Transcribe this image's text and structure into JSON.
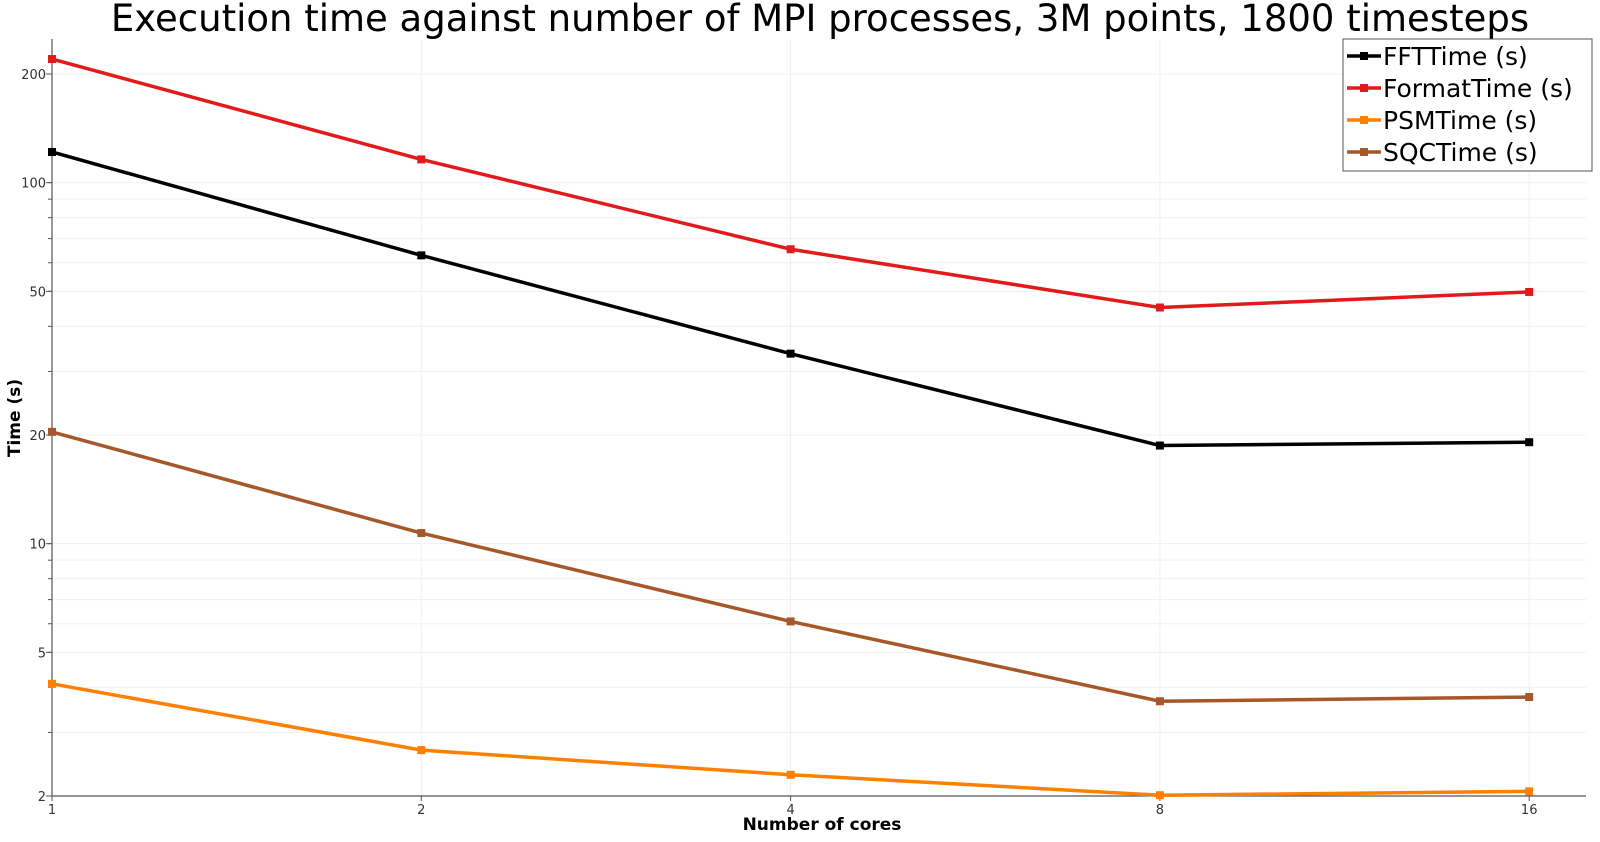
{
  "chart_data": {
    "type": "line",
    "title": "Execution time against number of MPI processes, 3M points, 1800 timesteps",
    "xlabel": "Number of cores",
    "ylabel": "Time (s)",
    "x_scale": "log",
    "y_scale": "log",
    "x": [
      1,
      2,
      4,
      8,
      16
    ],
    "x_ticks": [
      "1",
      "2",
      "4",
      "8",
      "16"
    ],
    "y_ticks": [
      "2",
      "5",
      "10",
      "20",
      "50",
      "100",
      "200"
    ],
    "xlim": [
      1,
      17.8
    ],
    "ylim": [
      2,
      250
    ],
    "grid": true,
    "legend_position": "top-right",
    "series": [
      {
        "name": "FFTTime (s)",
        "color": "#000000",
        "values": [
          121.6,
          62.9,
          33.6,
          18.7,
          19.1
        ]
      },
      {
        "name": "FormatTime (s)",
        "color": "#e31a1c",
        "values": [
          220,
          116,
          65.4,
          45.1,
          49.8
        ]
      },
      {
        "name": "PSMTime (s)",
        "color": "#ff7f00",
        "values": [
          4.09,
          2.68,
          2.29,
          2.01,
          2.06
        ]
      },
      {
        "name": "SQCTime (s)",
        "color": "#a6582a",
        "values": [
          20.4,
          10.7,
          6.09,
          3.66,
          3.76
        ]
      }
    ]
  }
}
